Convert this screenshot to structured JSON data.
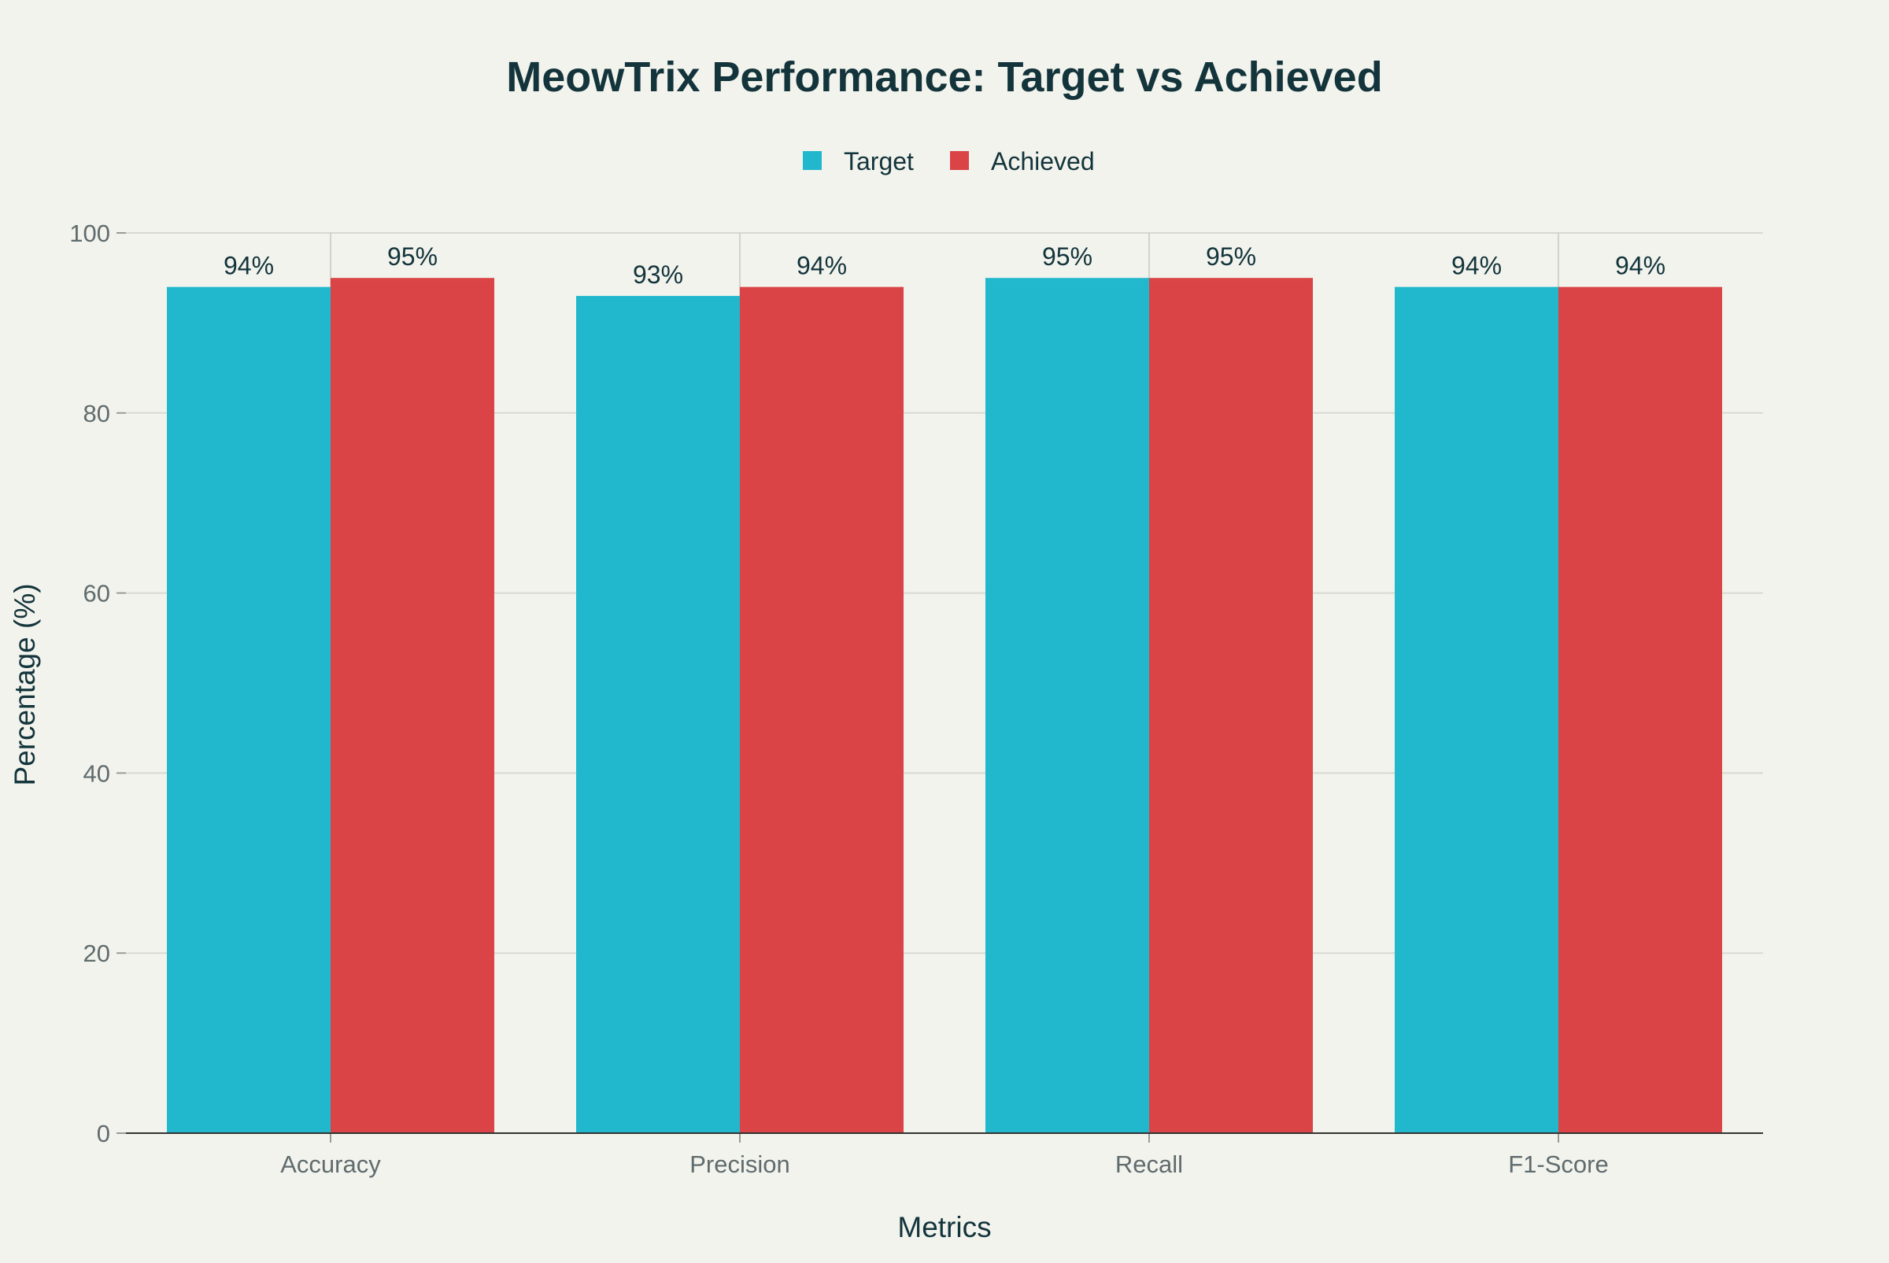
{
  "chart_data": {
    "type": "bar",
    "title": "MeowTrix Performance: Target vs Achieved",
    "xlabel": "Metrics",
    "ylabel": "Percentage (%)",
    "categories": [
      "Accuracy",
      "Precision",
      "Recall",
      "F1-Score"
    ],
    "series": [
      {
        "name": "Target",
        "values": [
          94,
          93,
          95,
          94
        ],
        "color": "#21b8cd"
      },
      {
        "name": "Achieved",
        "values": [
          95,
          94,
          95,
          94
        ],
        "color": "#db4446"
      }
    ],
    "data_labels": [
      [
        "94%",
        "93%",
        "95%",
        "94%"
      ],
      [
        "95%",
        "94%",
        "95%",
        "94%"
      ]
    ],
    "ylim": [
      0,
      100
    ],
    "yticks": [
      0,
      20,
      40,
      60,
      80,
      100
    ],
    "grid": true,
    "legend_position": "top-center"
  }
}
